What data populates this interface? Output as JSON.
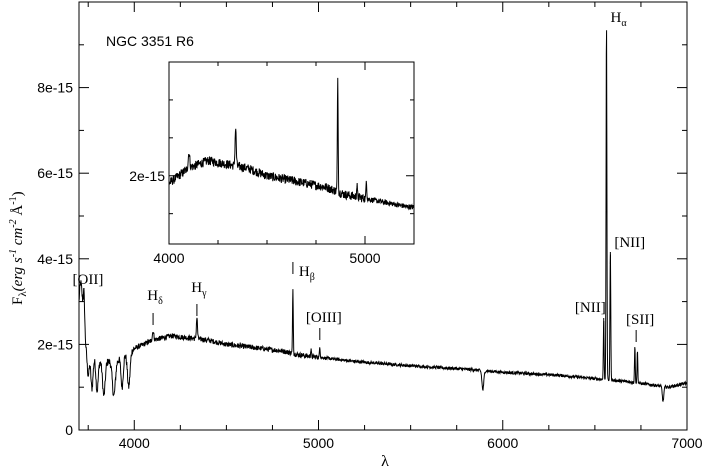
{
  "chart_data": [
    {
      "type": "line",
      "title": "NGC 3351 R6",
      "xlabel": "λ",
      "ylabel": {
        "main": "F",
        "sub": "λ",
        "units": "(erg s",
        "exp1": "-1",
        "units2": " cm",
        "exp2": "-2",
        "units3": " Å",
        "exp3": "-1",
        "close": ")"
      },
      "xlim": [
        3700,
        7000
      ],
      "ylim": [
        0,
        1e-14
      ],
      "x_ticks": [
        {
          "value": 4000,
          "label": "4000"
        },
        {
          "value": 5000,
          "label": "5000"
        },
        {
          "value": 6000,
          "label": "6000"
        },
        {
          "value": 7000,
          "label": "7000"
        }
      ],
      "y_ticks": [
        {
          "value": 0,
          "label": "0"
        },
        {
          "value": 2e-15,
          "label": "2e-15"
        },
        {
          "value": 4e-15,
          "label": "4e-15"
        },
        {
          "value": 6e-15,
          "label": "6e-15"
        },
        {
          "value": 8e-15,
          "label": "8e-15"
        }
      ],
      "continuum": [
        [
          3700,
          2.2e-15
        ],
        [
          3730,
          2e-15
        ],
        [
          3800,
          1.6e-15
        ],
        [
          3900,
          1.6e-15
        ],
        [
          4000,
          1.9e-15
        ],
        [
          4100,
          2.1e-15
        ],
        [
          4200,
          2.2e-15
        ],
        [
          4300,
          2.15e-15
        ],
        [
          4400,
          2.1e-15
        ],
        [
          4500,
          2e-15
        ],
        [
          4600,
          1.95e-15
        ],
        [
          4700,
          1.9e-15
        ],
        [
          4800,
          1.85e-15
        ],
        [
          4900,
          1.75e-15
        ],
        [
          5000,
          1.7e-15
        ],
        [
          5200,
          1.6e-15
        ],
        [
          5500,
          1.5e-15
        ],
        [
          5800,
          1.42e-15
        ],
        [
          6000,
          1.35e-15
        ],
        [
          6300,
          1.28e-15
        ],
        [
          6500,
          1.2e-15
        ],
        [
          6700,
          1.12e-15
        ],
        [
          6900,
          1e-15
        ],
        [
          7000,
          1.1e-15
        ]
      ],
      "features": [
        {
          "x": 3710,
          "amp": 1.3e-15,
          "width": 10
        },
        {
          "x": 3727,
          "amp": 9e-16,
          "width": 4
        },
        {
          "x": 3750,
          "amp": -6e-16,
          "width": 6
        },
        {
          "x": 3770,
          "amp": -8e-16,
          "width": 6
        },
        {
          "x": 3798,
          "amp": -7e-16,
          "width": 6
        },
        {
          "x": 3835,
          "amp": -8e-16,
          "width": 7
        },
        {
          "x": 3889,
          "amp": -8e-16,
          "width": 8
        },
        {
          "x": 3934,
          "amp": -7e-16,
          "width": 6
        },
        {
          "x": 3970,
          "amp": -8e-16,
          "width": 7
        },
        {
          "x": 4102,
          "amp": 2e-16,
          "width": 4
        },
        {
          "x": 4340,
          "amp": 5e-16,
          "width": 3
        },
        {
          "x": 4861,
          "amp": 1.5e-15,
          "width": 2
        },
        {
          "x": 4959,
          "amp": 1.5e-16,
          "width": 2
        },
        {
          "x": 5007,
          "amp": 2.5e-16,
          "width": 2
        },
        {
          "x": 5892,
          "amp": -4.5e-16,
          "width": 5
        },
        {
          "x": 6548,
          "amp": 1.4e-15,
          "width": 2
        },
        {
          "x": 6563,
          "amp": 8.4e-15,
          "width": 2.2
        },
        {
          "x": 6584,
          "amp": 3e-15,
          "width": 2.2
        },
        {
          "x": 6717,
          "amp": 8.5e-16,
          "width": 2
        },
        {
          "x": 6731,
          "amp": 7.5e-16,
          "width": 2
        },
        {
          "x": 6870,
          "amp": -3.5e-16,
          "width": 4
        }
      ],
      "line_labels": [
        {
          "name": "OII",
          "text": "[OII]",
          "x": 3727
        },
        {
          "name": "H-delta",
          "text": "H",
          "sub": "δ",
          "x": 4102
        },
        {
          "name": "H-gamma",
          "text": "H",
          "sub": "γ",
          "x": 4340
        },
        {
          "name": "H-beta",
          "text": "H",
          "sub": "β",
          "x": 4861
        },
        {
          "name": "OIII",
          "text": "[OIII]",
          "x": 5007
        },
        {
          "name": "NII-6548",
          "text": "[NII]",
          "x": 6548
        },
        {
          "name": "H-alpha",
          "text": "H",
          "sub": "α",
          "x": 6563
        },
        {
          "name": "NII-6584",
          "text": "[NII]",
          "x": 6584
        },
        {
          "name": "SII",
          "text": "[SII]",
          "x": 6724
        }
      ]
    },
    {
      "type": "line",
      "role": "inset",
      "xlim": [
        4000,
        5250
      ],
      "ylim": [
        1.1e-15,
        3.5e-15
      ],
      "x_ticks": [
        {
          "value": 4000,
          "label": "4000"
        },
        {
          "value": 5000,
          "label": "5000"
        }
      ],
      "y_ticks": [
        {
          "value": 2e-15,
          "label": "2e-15"
        }
      ]
    }
  ]
}
